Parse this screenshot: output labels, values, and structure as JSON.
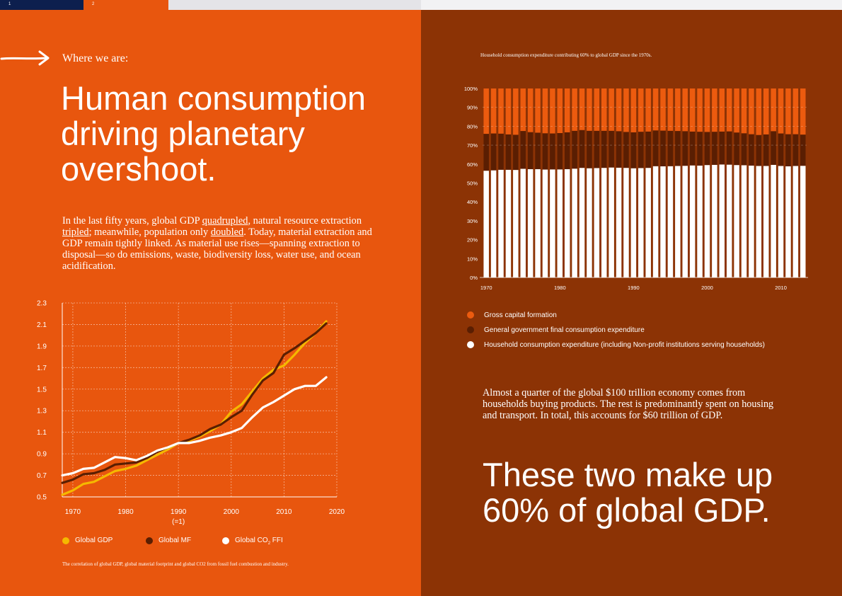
{
  "colors": {
    "orange": "#e8560e",
    "brown": "#8c3305",
    "dark_brown": "#5a1e02",
    "gold": "#f5b800",
    "white": "#ffffff",
    "navy": "#0d1f4e",
    "mid_orange": "#ec5b0f"
  },
  "page_numbers": [
    "1",
    "2"
  ],
  "left": {
    "kicker": "Where we are:",
    "headline": "Human consumption driving planetary overshoot.",
    "intro": {
      "p1": "In the last fifty years, global GDP ",
      "u1": "quadrupled",
      "p2": ", natural resource extraction ",
      "u2": "tripled",
      "p3": "; meanwhile, population only ",
      "u3": "doubled",
      "p4": ". Today, material extraction and GDP remain tightly linked. As material use rises—spanning extraction to disposal—so do emissions, waste, biodiversity loss, water use, and ocean acidification."
    },
    "caption": "The correlation of global GDP, global material footprint and global CO2 from fossil fuel combustion and industry."
  },
  "right": {
    "caption": "Household consumption expenditure contributing 60% to global GDP since the 1970s.",
    "body": "Almost a quarter of the global $100 trillion economy comes from households buying products. The rest is predominantly spent on housing and transport. In total, this accounts for $60 trillion of GDP.",
    "big_stat": "These two make up 60% of global GDP."
  },
  "chart_data": [
    {
      "type": "line",
      "title": "",
      "xlabel": "",
      "ylabel": "",
      "xlim": [
        1968,
        2020
      ],
      "ylim": [
        0.5,
        2.3
      ],
      "x_ticks": [
        1970,
        1980,
        1990,
        2000,
        2010,
        2020
      ],
      "x_tick_labels": [
        "1970",
        "1980",
        "1990",
        "2000",
        "2010",
        "2020"
      ],
      "x_tick_sub": {
        "1990": "(=1)"
      },
      "y_ticks": [
        0.5,
        0.7,
        0.9,
        1.1,
        1.3,
        1.5,
        1.7,
        1.9,
        2.1,
        2.3
      ],
      "y_tick_labels": [
        "0.5",
        "0.7",
        "0.9",
        "1.1",
        "1.3",
        "1.5",
        "1.7",
        "1.9",
        "2.1",
        "2.3"
      ],
      "grid": true,
      "series": [
        {
          "name": "Global GDP",
          "color": "#f5b800",
          "legend_label": "Global GDP",
          "x": [
            1968,
            1970,
            1972,
            1974,
            1976,
            1978,
            1980,
            1982,
            1984,
            1986,
            1988,
            1990,
            1992,
            1994,
            1996,
            1998,
            2000,
            2002,
            2004,
            2006,
            2008,
            2010,
            2012,
            2014,
            2016,
            2018
          ],
          "y": [
            0.52,
            0.56,
            0.62,
            0.64,
            0.69,
            0.74,
            0.76,
            0.79,
            0.84,
            0.89,
            0.94,
            1.0,
            1.02,
            1.06,
            1.11,
            1.17,
            1.29,
            1.36,
            1.48,
            1.6,
            1.68,
            1.72,
            1.82,
            1.93,
            2.02,
            2.13
          ]
        },
        {
          "name": "Global MF",
          "color": "#5a1e02",
          "legend_label": "Global MF",
          "x": [
            1968,
            1970,
            1972,
            1974,
            1976,
            1978,
            1980,
            1982,
            1984,
            1986,
            1988,
            1990,
            1992,
            1994,
            1996,
            1998,
            2000,
            2002,
            2004,
            2006,
            2008,
            2010,
            2012,
            2014,
            2016,
            2018
          ],
          "y": [
            0.63,
            0.66,
            0.71,
            0.72,
            0.75,
            0.8,
            0.81,
            0.82,
            0.86,
            0.92,
            0.96,
            1.0,
            1.03,
            1.07,
            1.13,
            1.17,
            1.24,
            1.3,
            1.45,
            1.58,
            1.65,
            1.82,
            1.88,
            1.95,
            2.02,
            2.11
          ]
        },
        {
          "name": "Global CO2 FFI",
          "color": "#ffffff",
          "legend_label": "Global CO",
          "legend_sub": "2",
          "legend_suffix": " FFI",
          "x": [
            1968,
            1970,
            1972,
            1974,
            1976,
            1978,
            1980,
            1982,
            1984,
            1986,
            1988,
            1990,
            1992,
            1994,
            1996,
            1998,
            2000,
            2002,
            2004,
            2006,
            2008,
            2010,
            2012,
            2014,
            2016,
            2018
          ],
          "y": [
            0.7,
            0.72,
            0.76,
            0.77,
            0.82,
            0.87,
            0.86,
            0.84,
            0.88,
            0.93,
            0.96,
            1.0,
            1.0,
            1.02,
            1.05,
            1.07,
            1.1,
            1.14,
            1.24,
            1.33,
            1.38,
            1.44,
            1.5,
            1.53,
            1.53,
            1.61
          ]
        }
      ]
    },
    {
      "type": "bar",
      "stacked": true,
      "title": "Household consumption expenditure contributing 60% to global GDP since the 1970s.",
      "xlabel": "",
      "ylabel": "",
      "ylim": [
        0,
        100
      ],
      "categories": [
        1970,
        1971,
        1972,
        1973,
        1974,
        1975,
        1976,
        1977,
        1978,
        1979,
        1980,
        1981,
        1982,
        1983,
        1984,
        1985,
        1986,
        1987,
        1988,
        1989,
        1990,
        1991,
        1992,
        1993,
        1994,
        1995,
        1996,
        1997,
        1998,
        1999,
        2000,
        2001,
        2002,
        2003,
        2004,
        2005,
        2006,
        2007,
        2008,
        2009,
        2010,
        2011,
        2012,
        2013
      ],
      "x_ticks": [
        1970,
        1980,
        1990,
        2000,
        2010
      ],
      "x_tick_labels": [
        "1970",
        "1980",
        "1990",
        "2000",
        "2010"
      ],
      "y_ticks": [
        0,
        10,
        20,
        30,
        40,
        50,
        60,
        70,
        80,
        90,
        100
      ],
      "y_tick_labels": [
        "0%",
        "10%",
        "20%",
        "30%",
        "40%",
        "50%",
        "60%",
        "70%",
        "80%",
        "90%",
        "100%"
      ],
      "legend": [
        "Gross capital formation",
        "General government final consumption expenditure",
        "Household consumption expenditure (including Non-profit institutions serving households)"
      ],
      "series": [
        {
          "name": "Household consumption expenditure (including Non-profit institutions serving households)",
          "color": "#ffffff",
          "values": [
            56.5,
            56.7,
            57.0,
            57.0,
            56.9,
            57.5,
            57.3,
            57.3,
            57.1,
            57.2,
            57.2,
            57.3,
            57.6,
            58.0,
            57.8,
            57.9,
            58.0,
            58.2,
            58.1,
            58.0,
            57.8,
            57.9,
            58.0,
            58.9,
            58.8,
            58.9,
            59.0,
            59.1,
            59.3,
            59.2,
            59.5,
            59.6,
            59.8,
            59.7,
            59.5,
            59.4,
            59.2,
            59.0,
            59.0,
            59.6,
            59.0,
            58.8,
            59.0,
            59.1
          ]
        },
        {
          "name": "General government final consumption expenditure",
          "color": "#5a1e02",
          "values": [
            19.5,
            19.5,
            19.1,
            18.7,
            18.6,
            20.0,
            19.6,
            19.3,
            19.2,
            19.0,
            19.2,
            19.5,
            20.0,
            20.0,
            19.8,
            19.7,
            19.6,
            19.4,
            19.3,
            19.0,
            19.0,
            19.2,
            19.2,
            18.9,
            18.9,
            18.7,
            18.5,
            18.3,
            17.9,
            17.9,
            17.5,
            17.5,
            17.4,
            17.6,
            17.2,
            16.9,
            16.6,
            16.4,
            16.7,
            17.8,
            17.2,
            17.0,
            16.8,
            16.5
          ]
        },
        {
          "name": "Gross capital formation",
          "color": "#ec5b0f",
          "values": [
            24.0,
            23.8,
            23.9,
            24.3,
            24.5,
            22.5,
            23.1,
            23.4,
            23.7,
            23.8,
            23.6,
            23.2,
            22.4,
            22.0,
            22.4,
            22.4,
            22.4,
            22.4,
            22.6,
            23.0,
            23.2,
            22.9,
            22.8,
            22.2,
            22.3,
            22.4,
            22.5,
            22.6,
            22.8,
            22.9,
            23.0,
            22.9,
            22.8,
            22.7,
            23.3,
            23.7,
            24.2,
            24.6,
            24.3,
            22.6,
            23.8,
            24.2,
            24.2,
            24.4
          ]
        }
      ]
    }
  ]
}
